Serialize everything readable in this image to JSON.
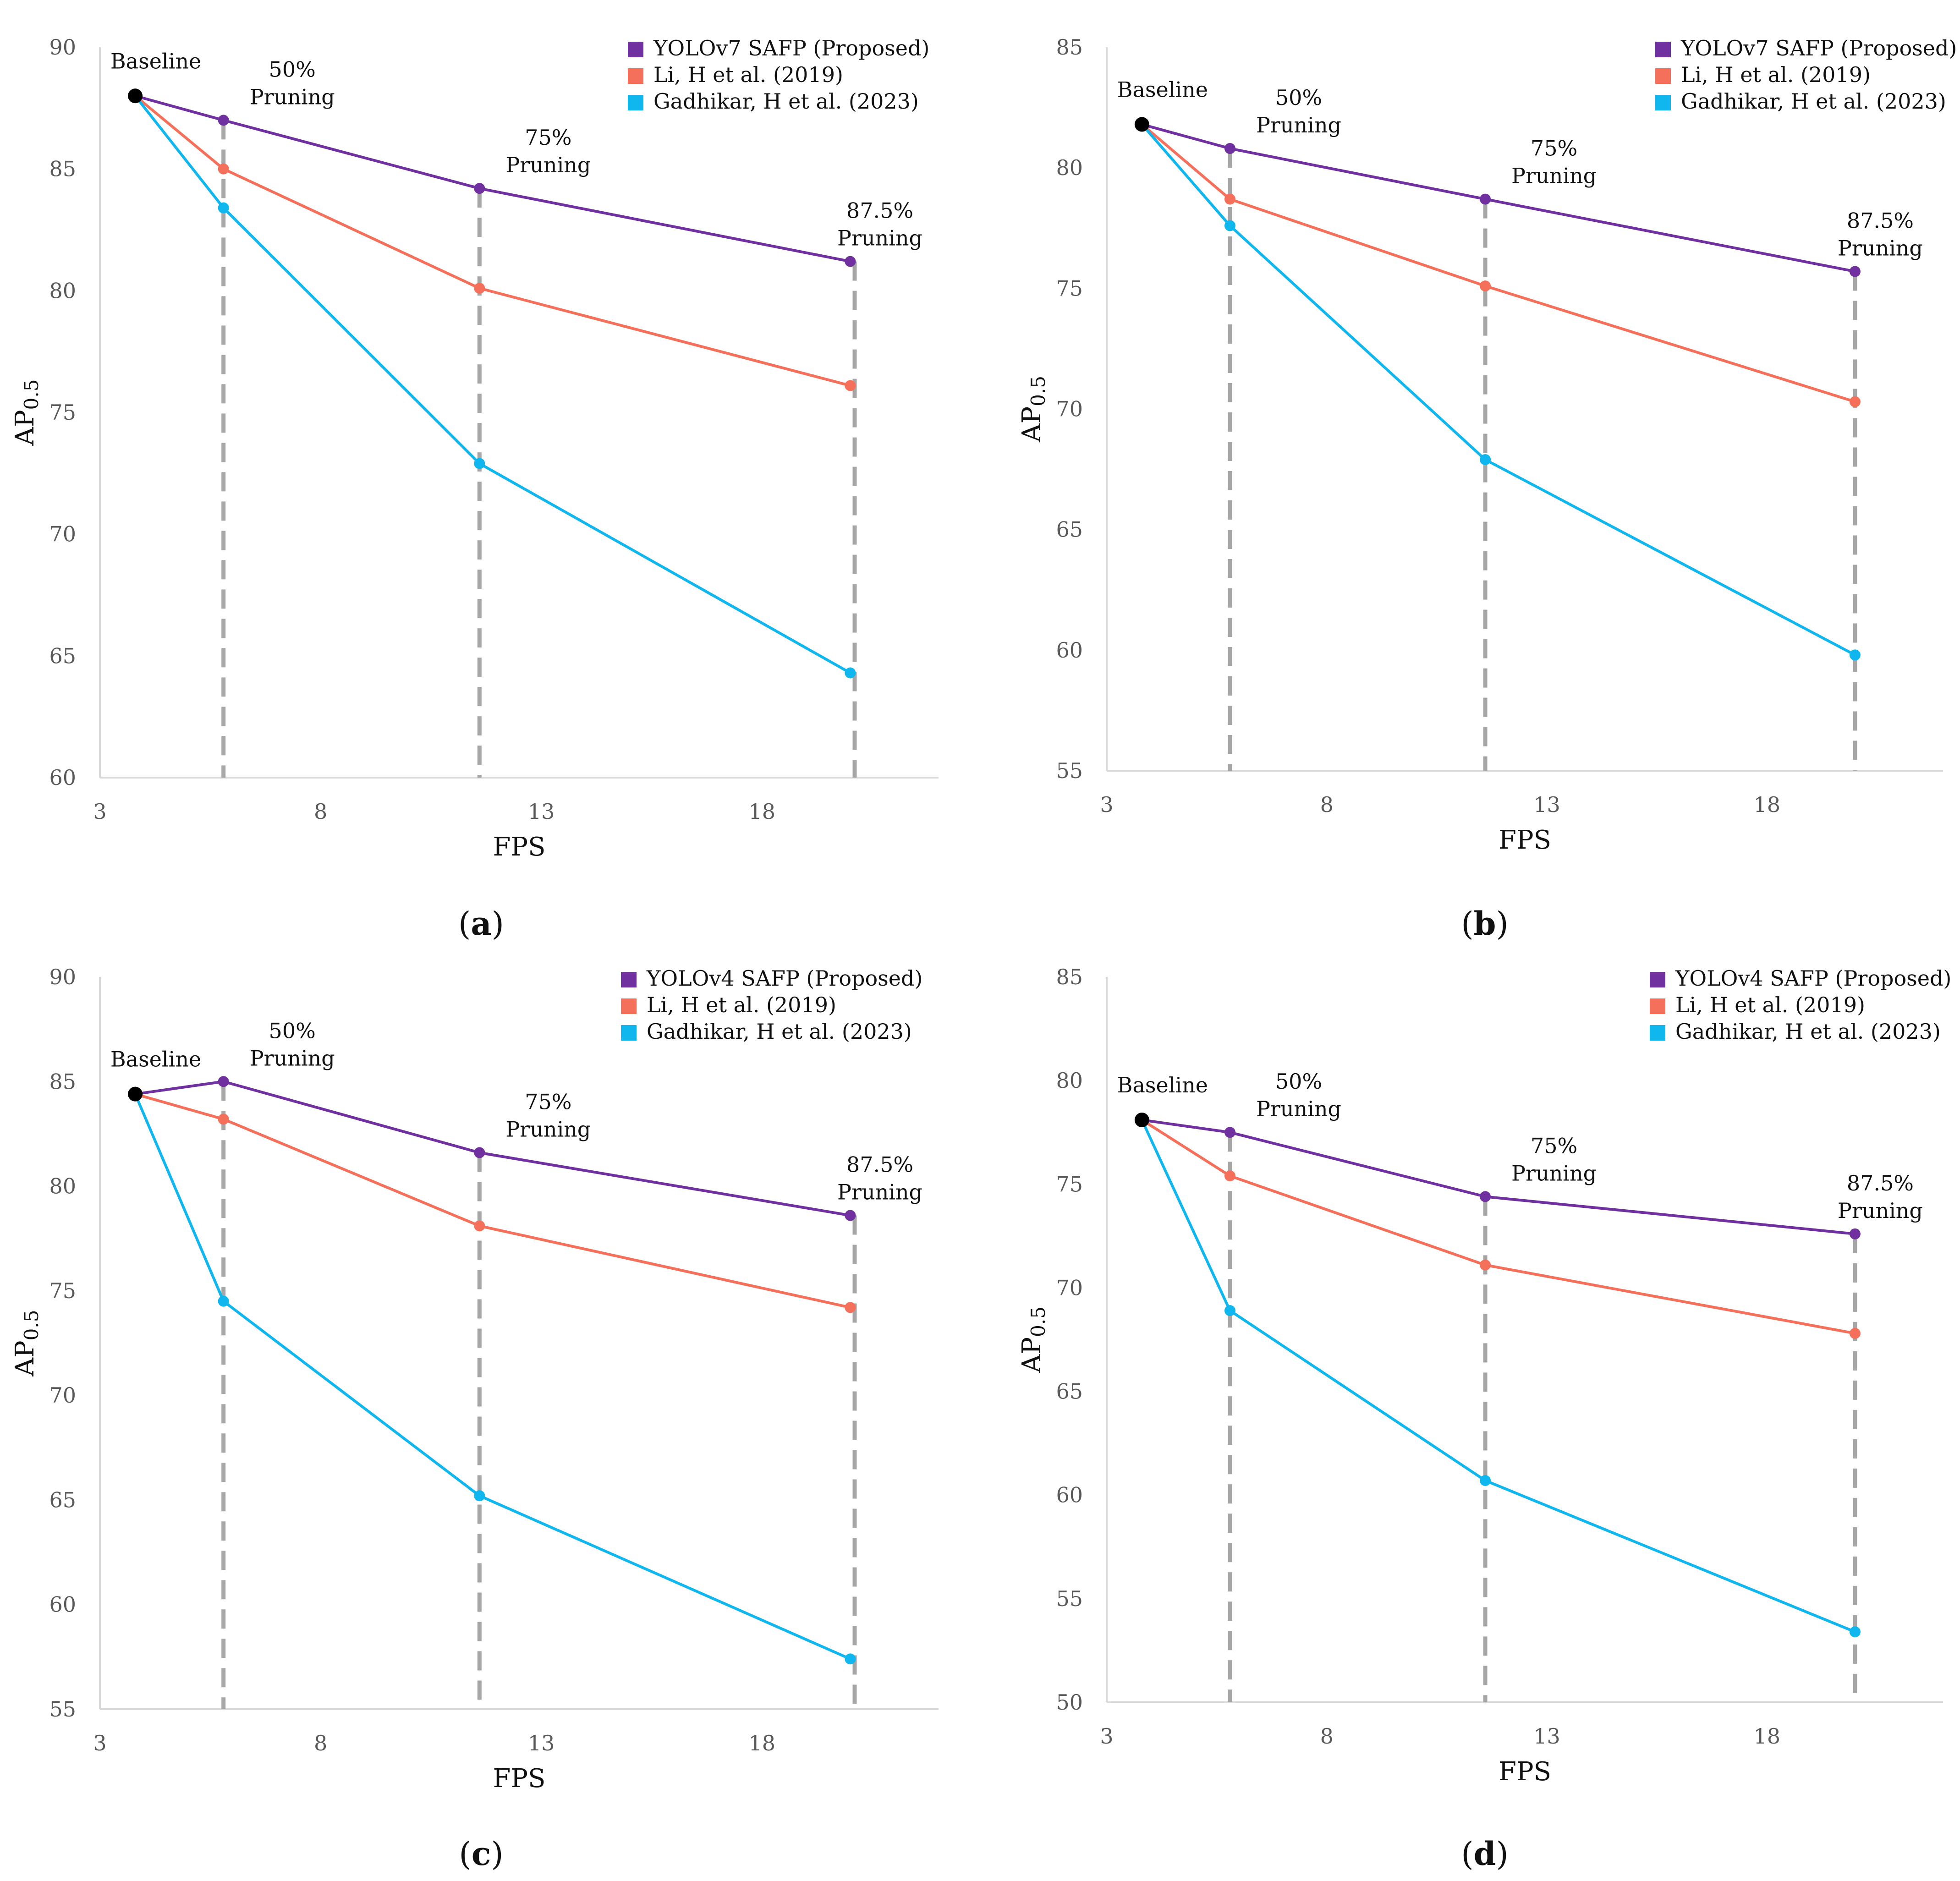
{
  "colors": {
    "proposed": "#7030A0",
    "li": "#F4705A",
    "gadhikar": "#0FB7EE",
    "baseline": "#000000",
    "dashed": "#A6A6A6",
    "axis": "#D9D9D9"
  },
  "chart_data": [
    {
      "type": "line",
      "panel_label": "a",
      "xlabel": "FPS",
      "ylabel": "AP",
      "ylabel_sub": "0.5",
      "xlim": [
        3,
        22
      ],
      "ylim": [
        60,
        90
      ],
      "xticks": [
        3,
        8,
        13,
        18
      ],
      "yticks": [
        60,
        65,
        70,
        75,
        80,
        85,
        90
      ],
      "baseline": {
        "label": "Baseline",
        "x": 3.8,
        "y": 88.0
      },
      "pruning_x": [
        5.8,
        11.6,
        20.1
      ],
      "annotations": [
        {
          "line1": "50%",
          "line2": "Pruning"
        },
        {
          "line1": "75%",
          "line2": "Pruning"
        },
        {
          "line1": "87.5%",
          "line2": "Pruning"
        }
      ],
      "series": [
        {
          "name": "YOLOv7 SAFP (Proposed)",
          "color_key": "proposed",
          "x": [
            3.8,
            5.8,
            11.6,
            20.0
          ],
          "y": [
            88.0,
            87.0,
            84.2,
            81.2
          ]
        },
        {
          "name": "Li, H et al. (2019)",
          "color_key": "li",
          "x": [
            3.8,
            5.8,
            11.6,
            20.0
          ],
          "y": [
            88.0,
            85.0,
            80.1,
            76.1
          ]
        },
        {
          "name": "Gadhikar, H et al. (2023)",
          "color_key": "gadhikar",
          "x": [
            3.8,
            5.8,
            11.6,
            20.0
          ],
          "y": [
            88.0,
            83.4,
            72.9,
            64.3
          ]
        }
      ]
    },
    {
      "type": "line",
      "panel_label": "b",
      "xlabel": "FPS",
      "ylabel": "AP",
      "ylabel_sub": "0.5",
      "xlim": [
        3,
        22
      ],
      "ylim": [
        55,
        85
      ],
      "xticks": [
        3,
        8,
        13,
        18
      ],
      "yticks": [
        55,
        60,
        65,
        70,
        75,
        80,
        85
      ],
      "baseline": {
        "label": "Baseline",
        "x": 3.8,
        "y": 81.8
      },
      "pruning_x": [
        5.8,
        11.6,
        20.0
      ],
      "annotations": [
        {
          "line1": "50%",
          "line2": "Pruning"
        },
        {
          "line1": "75%",
          "line2": "Pruning"
        },
        {
          "line1": "87.5%",
          "line2": "Pruning"
        }
      ],
      "series": [
        {
          "name": "YOLOv7 SAFP (Proposed)",
          "color_key": "proposed",
          "x": [
            3.8,
            5.8,
            11.6,
            20.0
          ],
          "y": [
            81.8,
            80.8,
            78.7,
            75.7
          ]
        },
        {
          "name": "Li, H et al. (2019)",
          "color_key": "li",
          "x": [
            3.8,
            5.8,
            11.6,
            20.0
          ],
          "y": [
            81.8,
            78.7,
            75.1,
            70.3
          ]
        },
        {
          "name": "Gadhikar, H et al. (2023)",
          "color_key": "gadhikar",
          "x": [
            3.8,
            5.8,
            11.6,
            20.0
          ],
          "y": [
            81.8,
            77.6,
            67.9,
            59.8
          ]
        }
      ]
    },
    {
      "type": "line",
      "panel_label": "c",
      "xlabel": "FPS",
      "ylabel": "AP",
      "ylabel_sub": "0.5",
      "xlim": [
        3,
        22
      ],
      "ylim": [
        55,
        90
      ],
      "xticks": [
        3,
        8,
        13,
        18
      ],
      "yticks": [
        55,
        60,
        65,
        70,
        75,
        80,
        85,
        90
      ],
      "baseline": {
        "label": "Baseline",
        "x": 3.8,
        "y": 84.4
      },
      "pruning_x": [
        5.8,
        11.6,
        20.1
      ],
      "annotations": [
        {
          "line1": "50%",
          "line2": "Pruning"
        },
        {
          "line1": "75%",
          "line2": "Pruning"
        },
        {
          "line1": "87.5%",
          "line2": "Pruning"
        }
      ],
      "series": [
        {
          "name": "YOLOv4 SAFP (Proposed)",
          "color_key": "proposed",
          "x": [
            3.8,
            5.8,
            11.6,
            20.0
          ],
          "y": [
            84.4,
            85.0,
            81.6,
            78.6
          ]
        },
        {
          "name": "Li, H et al. (2019)",
          "color_key": "li",
          "x": [
            3.8,
            5.8,
            11.6,
            20.0
          ],
          "y": [
            84.4,
            83.2,
            78.1,
            74.2
          ]
        },
        {
          "name": "Gadhikar, H et al. (2023)",
          "color_key": "gadhikar",
          "x": [
            3.8,
            5.8,
            11.6,
            20.0
          ],
          "y": [
            84.4,
            74.5,
            65.2,
            57.4
          ]
        }
      ]
    },
    {
      "type": "line",
      "panel_label": "d",
      "xlabel": "FPS",
      "ylabel": "AP",
      "ylabel_sub": "0.5",
      "xlim": [
        3,
        22
      ],
      "ylim": [
        50,
        85
      ],
      "xticks": [
        3,
        8,
        13,
        18
      ],
      "yticks": [
        50,
        55,
        60,
        65,
        70,
        75,
        80,
        85
      ],
      "baseline": {
        "label": "Baseline",
        "x": 3.8,
        "y": 78.1
      },
      "pruning_x": [
        5.8,
        11.6,
        20.0
      ],
      "annotations": [
        {
          "line1": "50%",
          "line2": "Pruning"
        },
        {
          "line1": "75%",
          "line2": "Pruning"
        },
        {
          "line1": "87.5%",
          "line2": "Pruning"
        }
      ],
      "series": [
        {
          "name": "YOLOv4 SAFP (Proposed)",
          "color_key": "proposed",
          "x": [
            3.8,
            5.8,
            11.6,
            20.0
          ],
          "y": [
            78.1,
            77.5,
            74.4,
            72.6
          ]
        },
        {
          "name": "Li, H et al. (2019)",
          "color_key": "li",
          "x": [
            3.8,
            5.8,
            11.6,
            20.0
          ],
          "y": [
            78.1,
            75.4,
            71.1,
            67.8
          ]
        },
        {
          "name": "Gadhikar, H et al. (2023)",
          "color_key": "gadhikar",
          "x": [
            3.8,
            5.8,
            11.6,
            20.0
          ],
          "y": [
            78.1,
            68.9,
            60.7,
            53.4
          ]
        }
      ]
    }
  ]
}
